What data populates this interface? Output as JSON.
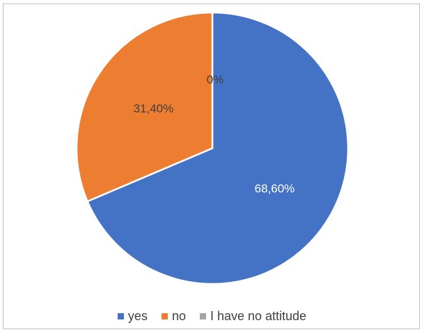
{
  "chart_data": {
    "type": "pie",
    "series": [
      {
        "name": "yes",
        "value": 68.6,
        "label": "68,60%",
        "color": "#4472C4",
        "label_color": "#ffffff"
      },
      {
        "name": "no",
        "value": 31.4,
        "label": "31,40%",
        "color": "#ED7D31",
        "label_color": "#404040"
      },
      {
        "name": "I have no attitude",
        "value": 0,
        "label": "0%",
        "color": "#A5A5A5",
        "label_color": "#404040"
      }
    ],
    "legend_position": "bottom",
    "title": ""
  }
}
